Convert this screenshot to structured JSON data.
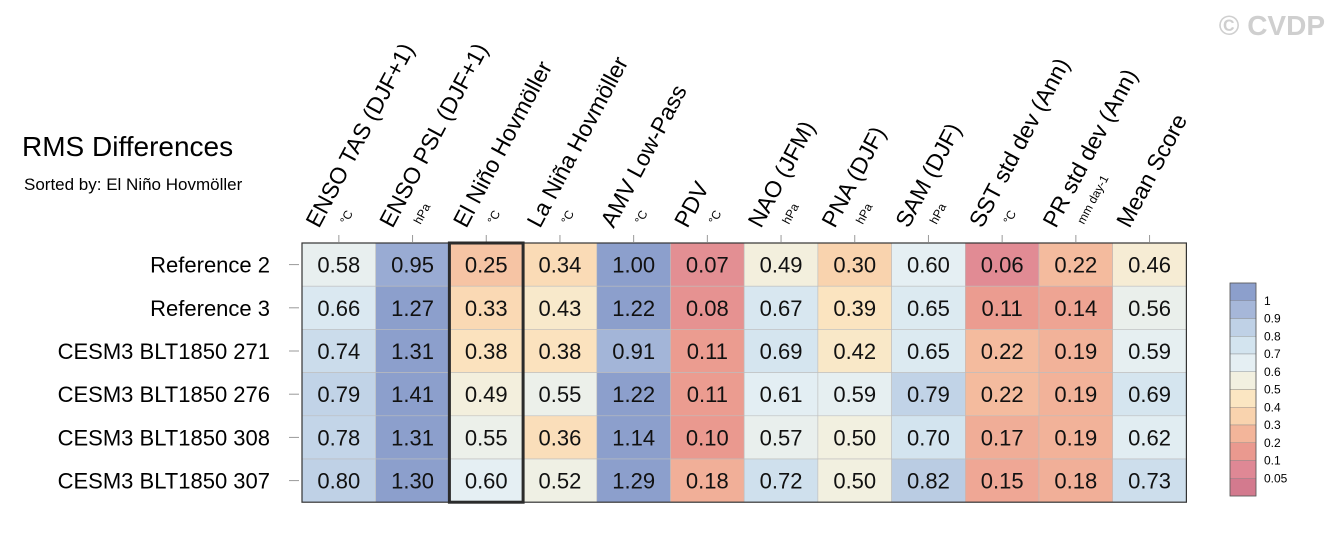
{
  "watermark": "© CVDP",
  "chart_data": {
    "type": "heatmap",
    "title": "RMS Differences",
    "subtitle": "Sorted by: El Niño Hovmöller",
    "columns": [
      {
        "label": "ENSO TAS (DJF+1)",
        "unit": "°C"
      },
      {
        "label": "ENSO PSL (DJF+1)",
        "unit": "hPa"
      },
      {
        "label": "El Niño Hovmöller",
        "unit": "°C"
      },
      {
        "label": "La Niña Hovmöller",
        "unit": "°C"
      },
      {
        "label": "AMV Low-Pass",
        "unit": "°C"
      },
      {
        "label": "PDV",
        "unit": "°C"
      },
      {
        "label": "NAO (JFM)",
        "unit": "hPa"
      },
      {
        "label": "PNA (DJF)",
        "unit": "hPa"
      },
      {
        "label": "SAM (DJF)",
        "unit": "hPa"
      },
      {
        "label": "SST std dev (Ann)",
        "unit": "°C"
      },
      {
        "label": "PR std dev (Ann)",
        "unit": "mm day-1"
      },
      {
        "label": "Mean Score",
        "unit": ""
      }
    ],
    "rows": [
      "Reference 2",
      "Reference 3",
      "CESM3 BLT1850 271",
      "CESM3 BLT1850 276",
      "CESM3 BLT1850 308",
      "CESM3 BLT1850 307"
    ],
    "values": [
      [
        "0.58",
        "0.95",
        "0.25",
        "0.34",
        "1.00",
        "0.07",
        "0.49",
        "0.30",
        "0.60",
        "0.06",
        "0.22",
        "0.46"
      ],
      [
        "0.66",
        "1.27",
        "0.33",
        "0.43",
        "1.22",
        "0.08",
        "0.67",
        "0.39",
        "0.65",
        "0.11",
        "0.14",
        "0.56"
      ],
      [
        "0.74",
        "1.31",
        "0.38",
        "0.38",
        "0.91",
        "0.11",
        "0.69",
        "0.42",
        "0.65",
        "0.22",
        "0.19",
        "0.59"
      ],
      [
        "0.79",
        "1.41",
        "0.49",
        "0.55",
        "1.22",
        "0.11",
        "0.61",
        "0.59",
        "0.79",
        "0.22",
        "0.19",
        "0.69"
      ],
      [
        "0.78",
        "1.31",
        "0.55",
        "0.36",
        "1.14",
        "0.10",
        "0.57",
        "0.50",
        "0.70",
        "0.17",
        "0.19",
        "0.62"
      ],
      [
        "0.80",
        "1.30",
        "0.60",
        "0.52",
        "1.29",
        "0.18",
        "0.72",
        "0.50",
        "0.82",
        "0.15",
        "0.18",
        "0.73"
      ]
    ],
    "highlighted_column": "El Niño Hovmöller",
    "colorbar": {
      "labels": [
        "1",
        "0.9",
        "0.8",
        "0.7",
        "0.6",
        "0.5",
        "0.4",
        "0.3",
        "0.2",
        "0.1",
        "0.05"
      ],
      "colors": [
        "#8c9fcc",
        "#a6b7d9",
        "#bfd1e6",
        "#d3e4ef",
        "#e5eff3",
        "#f2f0e0",
        "#fbe6c2",
        "#f9d3ae",
        "#f3b59a",
        "#ea998f",
        "#df8895",
        "#d37a8e"
      ]
    }
  }
}
